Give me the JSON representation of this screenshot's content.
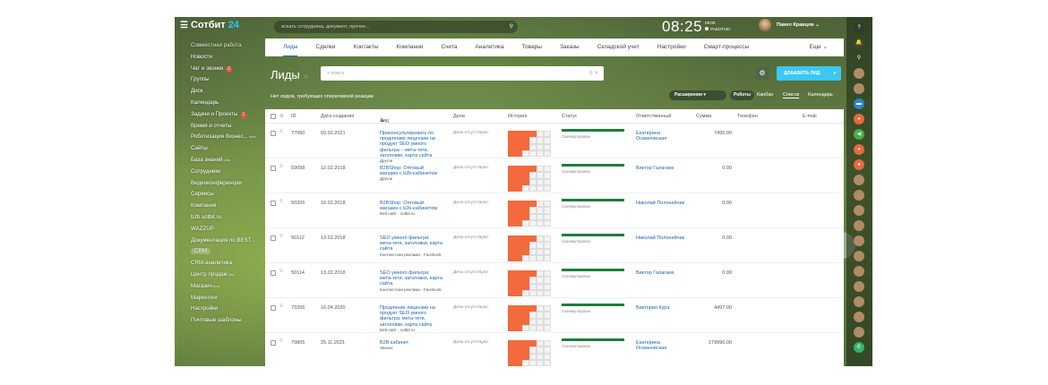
{
  "brand": {
    "name_part1": "Сотбит",
    "name_part2": "24"
  },
  "header": {
    "search_placeholder": "искать сотрудника, документ, прочее...",
    "clock": "08:25",
    "clock_time_small": "09:00",
    "clock_status": "РАБОТАЮ",
    "user_name": "Павел Кравцов"
  },
  "sidebar": {
    "items": [
      {
        "label": "Совместная работа",
        "muted": true
      },
      {
        "label": "Новости"
      },
      {
        "label": "Чат и звонки",
        "badge": "2"
      },
      {
        "label": "Группы"
      },
      {
        "label": "Диск"
      },
      {
        "label": "Календарь"
      },
      {
        "label": "Задачи и Проекты",
        "badge": "1"
      },
      {
        "label": "Время и отчеты"
      },
      {
        "label": "Роботизация бизнес...",
        "sup": "beta"
      },
      {
        "label": "Сайты"
      },
      {
        "label": "База знаний",
        "sup": "beta"
      },
      {
        "label": "Сотрудники"
      },
      {
        "label": "Видеоконференции"
      },
      {
        "label": "Сервисы"
      },
      {
        "label": "Компания"
      },
      {
        "label": "b2b.sotbit.ru"
      },
      {
        "label": "WAZZUP"
      },
      {
        "label": "Документация по BEST..."
      },
      {
        "label": "CRM",
        "selected": true
      },
      {
        "label": "CRM-аналитика"
      },
      {
        "label": "Центр продаж",
        "sup": "new"
      },
      {
        "label": "Магазин",
        "sup": "beta"
      },
      {
        "label": "Маркетинг"
      },
      {
        "label": "Настройки"
      },
      {
        "label": "Почтовые шаблоны"
      }
    ]
  },
  "tabs": [
    "Лиды",
    "Сделки",
    "Контакты",
    "Компании",
    "Счета",
    "Аналитика",
    "Товары",
    "Заказы",
    "Складской учет",
    "Настройки",
    "Смарт-процессы"
  ],
  "tabs_more": "Еще",
  "page": {
    "title": "Лиды",
    "filter_placeholder": "+ поиск",
    "add_button": "ДОБАВИТЬ ЛИД",
    "no_leads_text": "Нет лидов, требующих оперативной реакции",
    "extensions_button": "Расширения",
    "robots_button": "Роботы",
    "views": [
      "Канбан",
      "Список",
      "Календарь"
    ],
    "active_view": "Список"
  },
  "table": {
    "columns": [
      "ID",
      "Дата создания",
      "Лид",
      "Дела",
      "История",
      "Статус",
      "Ответственный",
      "Сумма",
      "Телефон",
      "E-mail"
    ],
    "rows": [
      {
        "id": "77090",
        "date": "03.02.2021",
        "name": "Проконсультировать по продлению лицензии на продукт SEO умного фильтра – мета-теги, заголовки, карта сайта",
        "source": "Другое",
        "deal": "Дела отсутствуют",
        "status": "Сконвертирован",
        "resp": "Екатерина Османовская",
        "sum": "7495.00",
        "cells": [
          1,
          1,
          1,
          1,
          0,
          0,
          1,
          1,
          1,
          0,
          0,
          0,
          1,
          1,
          1,
          0,
          0,
          0,
          1,
          1,
          0,
          0,
          0,
          0
        ]
      },
      {
        "id": "59098",
        "date": "12.02.2018",
        "name": "B2BShop: Оптовый магазин с b2b-кабинетом",
        "source": "Другое",
        "deal": "Дела отсутствуют",
        "status": "Сконвертирован",
        "resp": "Виктор Галагаев",
        "sum": "0.00",
        "cells": [
          1,
          1,
          1,
          1,
          0,
          0,
          1,
          1,
          1,
          0,
          0,
          0,
          1,
          1,
          1,
          0,
          0,
          0,
          1,
          1,
          0,
          0,
          0,
          0
        ]
      },
      {
        "id": "50326",
        "date": "16.02.2018",
        "name": "B2BShop: Оптовый магазин с b2b-кабинетом",
        "source": "Веб-сайт - sotbit.ru",
        "deal": "Дела отсутствуют",
        "status": "Сконвертирован",
        "resp": "Николай Полонейчик",
        "sum": "0.00",
        "cells": [
          1,
          1,
          1,
          1,
          0,
          0,
          1,
          1,
          1,
          0,
          0,
          0,
          1,
          1,
          1,
          0,
          0,
          0,
          1,
          1,
          0,
          0,
          0,
          0
        ]
      },
      {
        "id": "50112",
        "date": "13.02.2018",
        "name": "SEO умного фильтра: мета-теги, заголовки, карта сайта",
        "source": "Контекстная реклама - Facebook",
        "deal": "Дела отсутствуют",
        "status": "Сконвертирован",
        "resp": "Николай Полонейчик",
        "sum": "0.00",
        "cells": [
          1,
          1,
          1,
          1,
          0,
          0,
          1,
          1,
          1,
          0,
          0,
          0,
          1,
          1,
          1,
          0,
          0,
          0,
          1,
          1,
          0,
          0,
          0,
          0
        ]
      },
      {
        "id": "50114",
        "date": "13.02.2018",
        "name": "SEO умного фильтра: мета-теги, заголовки, карта сайта",
        "source": "Контекстная реклама - Facebook",
        "deal": "Дела отсутствуют",
        "status": "Сконвертирован",
        "resp": "Виктор Галагаев",
        "sum": "0.00",
        "cells": [
          1,
          1,
          1,
          1,
          0,
          0,
          1,
          1,
          1,
          0,
          0,
          0,
          1,
          1,
          1,
          0,
          0,
          0,
          1,
          1,
          0,
          0,
          0,
          0
        ]
      },
      {
        "id": "73206",
        "date": "16.04.2020",
        "name": "Продление лицензии на продукт SEO умного фильтра: мета-теги, заголовки, карта сайта",
        "source": "Веб-сайт - sotbit.ru",
        "deal": "Дела отсутствуют",
        "status": "Сконвертирован",
        "resp": "Виктория Кура",
        "sum": "4497.00",
        "cells": [
          1,
          1,
          1,
          1,
          0,
          0,
          1,
          1,
          1,
          0,
          0,
          0,
          1,
          1,
          1,
          0,
          0,
          0,
          1,
          1,
          0,
          0,
          0,
          0
        ]
      },
      {
        "id": "79805",
        "date": "25.11.2021",
        "name": "B2B кабинет",
        "source": "Звонок",
        "deal": "Дела отсутствуют",
        "status": "Сконвертирован",
        "resp": "Екатерина Османовская",
        "sum": "179990.00",
        "cells": [
          1,
          1,
          1,
          1,
          0,
          0,
          1,
          1,
          1,
          0,
          0,
          0,
          1,
          1,
          1,
          0,
          0,
          0,
          1,
          1,
          0,
          0,
          0,
          0
        ]
      }
    ]
  },
  "colors": {
    "accent": "#2067b0",
    "brand_accent": "#2fc7f7",
    "add_button": "#3bc8f5",
    "history_on": "#f26a3d",
    "status_bar": "#1f7d3a",
    "badge": "#f0544a"
  },
  "right_bar_icons": [
    "help-icon",
    "notifications-icon",
    "search-icon",
    "avatar",
    "avatar",
    "chat-icon",
    "group-icon",
    "megaphone-icon",
    "group-icon",
    "group-icon",
    "avatar",
    "avatar",
    "avatar",
    "avatar",
    "avatar",
    "avatar",
    "avatar",
    "avatar",
    "avatar",
    "avatar",
    "avatar",
    "phone-icon"
  ]
}
